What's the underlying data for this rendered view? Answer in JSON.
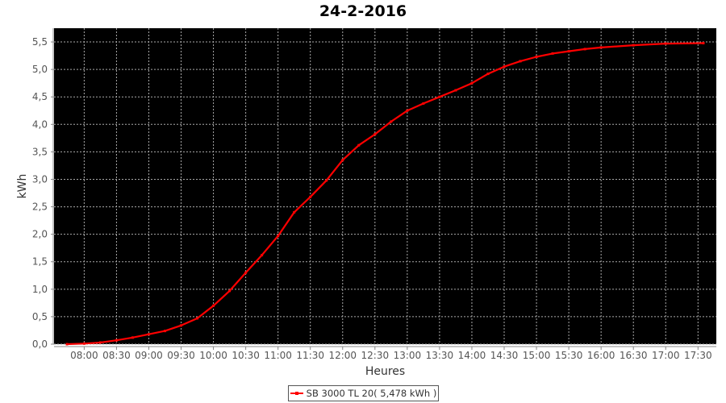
{
  "chart_data": {
    "type": "line",
    "title": "24-2-2016",
    "xlabel": "Heures",
    "ylabel": "kWh",
    "ylim": [
      0,
      5.75
    ],
    "xlim": [
      "07:32",
      "17:47"
    ],
    "yticks": [
      "0,0",
      "0,5",
      "1,0",
      "1,5",
      "2,0",
      "2,5",
      "3,0",
      "3,5",
      "4,0",
      "4,5",
      "5,0",
      "5,5"
    ],
    "xticks": [
      "08:00",
      "08:30",
      "09:00",
      "09:30",
      "10:00",
      "10:30",
      "11:00",
      "11:30",
      "12:00",
      "12:30",
      "13:00",
      "13:30",
      "14:00",
      "14:30",
      "15:00",
      "15:30",
      "16:00",
      "16:30",
      "17:00",
      "17:30"
    ],
    "grid": true,
    "background": "#000000",
    "legend_placement": "bottom",
    "series": [
      {
        "name": "SB 3000 TL 20( 5,478 kWh )",
        "color": "#ff0000",
        "x": [
          "07:44",
          "08:00",
          "08:15",
          "08:30",
          "08:45",
          "09:00",
          "09:15",
          "09:30",
          "09:45",
          "10:00",
          "10:15",
          "10:30",
          "10:45",
          "11:00",
          "11:15",
          "11:30",
          "11:45",
          "12:00",
          "12:15",
          "12:30",
          "12:45",
          "13:00",
          "13:15",
          "13:30",
          "13:45",
          "14:00",
          "14:15",
          "14:30",
          "14:45",
          "15:00",
          "15:15",
          "15:30",
          "15:45",
          "16:00",
          "16:30",
          "17:00",
          "17:35"
        ],
        "y": [
          0.0,
          0.01,
          0.03,
          0.07,
          0.12,
          0.18,
          0.24,
          0.34,
          0.47,
          0.7,
          0.97,
          1.3,
          1.62,
          1.97,
          2.4,
          2.68,
          2.98,
          3.35,
          3.62,
          3.82,
          4.05,
          4.25,
          4.38,
          4.5,
          4.62,
          4.75,
          4.92,
          5.05,
          5.15,
          5.23,
          5.29,
          5.33,
          5.37,
          5.4,
          5.44,
          5.47,
          5.478
        ]
      }
    ]
  }
}
